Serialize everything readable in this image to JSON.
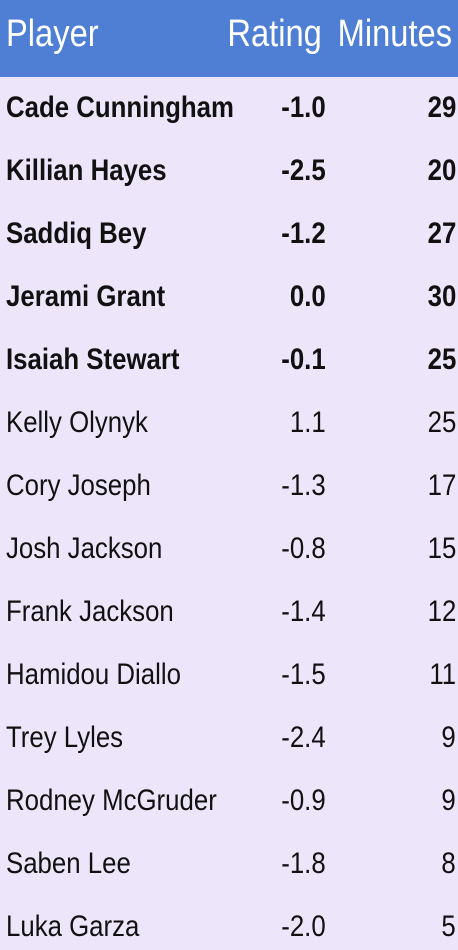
{
  "chart_data": {
    "type": "table",
    "columns": [
      "Player",
      "Rating",
      "Minutes"
    ],
    "rows": [
      {
        "player": "Cade Cunningham",
        "rating": "-1.0",
        "minutes": "29",
        "starter": true
      },
      {
        "player": "Killian Hayes",
        "rating": "-2.5",
        "minutes": "20",
        "starter": true
      },
      {
        "player": "Saddiq Bey",
        "rating": "-1.2",
        "minutes": "27",
        "starter": true
      },
      {
        "player": "Jerami Grant",
        "rating": "0.0",
        "minutes": "30",
        "starter": true
      },
      {
        "player": "Isaiah Stewart",
        "rating": "-0.1",
        "minutes": "25",
        "starter": true
      },
      {
        "player": "Kelly Olynyk",
        "rating": "1.1",
        "minutes": "25",
        "starter": false
      },
      {
        "player": "Cory Joseph",
        "rating": "-1.3",
        "minutes": "17",
        "starter": false
      },
      {
        "player": "Josh Jackson",
        "rating": "-0.8",
        "minutes": "15",
        "starter": false
      },
      {
        "player": "Frank Jackson",
        "rating": "-1.4",
        "minutes": "12",
        "starter": false
      },
      {
        "player": "Hamidou Diallo",
        "rating": "-1.5",
        "minutes": "11",
        "starter": false
      },
      {
        "player": "Trey Lyles",
        "rating": "-2.4",
        "minutes": "9",
        "starter": false
      },
      {
        "player": "Rodney McGruder",
        "rating": "-0.9",
        "minutes": "9",
        "starter": false
      },
      {
        "player": "Saben Lee",
        "rating": "-1.8",
        "minutes": "8",
        "starter": false
      },
      {
        "player": "Luka Garza",
        "rating": "-2.0",
        "minutes": "5",
        "starter": false
      }
    ]
  },
  "colors": {
    "header_background": "#4e7fd4",
    "header_text": "#ffffff",
    "body_background": "#ede6fa",
    "body_text": "#111111"
  }
}
